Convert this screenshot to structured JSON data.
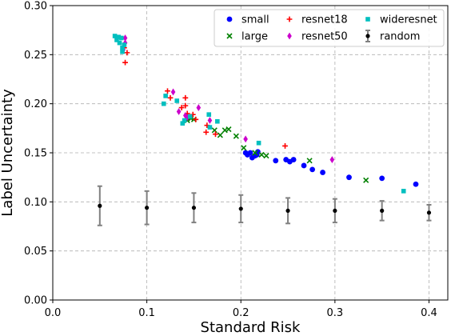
{
  "chart_data": {
    "type": "scatter",
    "title": "",
    "xlabel": "Standard Risk",
    "ylabel": "Label Uncertainty",
    "xlim": [
      0.0,
      0.42
    ],
    "ylim": [
      0.0,
      0.3
    ],
    "xticks": [
      "0.0",
      "0.1",
      "0.2",
      "0.3",
      "0.4"
    ],
    "xtick_values": [
      0.0,
      0.1,
      0.2,
      0.3,
      0.4
    ],
    "yticks": [
      "0.00",
      "0.05",
      "0.10",
      "0.15",
      "0.20",
      "0.25",
      "0.30"
    ],
    "ytick_values": [
      0.0,
      0.05,
      0.1,
      0.15,
      0.2,
      0.25,
      0.3
    ],
    "grid": true,
    "legend_position": "top-right",
    "series": [
      {
        "name": "small",
        "color": "#0000ff",
        "marker": "circle",
        "points": [
          [
            0.205,
            0.15
          ],
          [
            0.207,
            0.148
          ],
          [
            0.21,
            0.15
          ],
          [
            0.212,
            0.145
          ],
          [
            0.215,
            0.147
          ],
          [
            0.217,
            0.148
          ],
          [
            0.218,
            0.151
          ],
          [
            0.237,
            0.142
          ],
          [
            0.248,
            0.143
          ],
          [
            0.252,
            0.141
          ],
          [
            0.256,
            0.143
          ],
          [
            0.267,
            0.137
          ],
          [
            0.276,
            0.133
          ],
          [
            0.287,
            0.13
          ],
          [
            0.315,
            0.125
          ],
          [
            0.35,
            0.124
          ],
          [
            0.386,
            0.118
          ]
        ]
      },
      {
        "name": "large",
        "color": "#008000",
        "marker": "x",
        "points": [
          [
            0.143,
            0.183
          ],
          [
            0.147,
            0.185
          ],
          [
            0.15,
            0.184
          ],
          [
            0.172,
            0.173
          ],
          [
            0.178,
            0.168
          ],
          [
            0.183,
            0.173
          ],
          [
            0.187,
            0.174
          ],
          [
            0.195,
            0.167
          ],
          [
            0.203,
            0.155
          ],
          [
            0.215,
            0.15
          ],
          [
            0.222,
            0.148
          ],
          [
            0.227,
            0.147
          ],
          [
            0.273,
            0.142
          ],
          [
            0.333,
            0.122
          ]
        ]
      },
      {
        "name": "resnet18",
        "color": "#ff0000",
        "marker": "plus",
        "points": [
          [
            0.077,
            0.242
          ],
          [
            0.076,
            0.257
          ],
          [
            0.079,
            0.252
          ],
          [
            0.122,
            0.213
          ],
          [
            0.125,
            0.206
          ],
          [
            0.137,
            0.196
          ],
          [
            0.141,
            0.198
          ],
          [
            0.141,
            0.206
          ],
          [
            0.143,
            0.19
          ],
          [
            0.149,
            0.189
          ],
          [
            0.152,
            0.184
          ],
          [
            0.163,
            0.171
          ],
          [
            0.164,
            0.178
          ],
          [
            0.173,
            0.169
          ],
          [
            0.247,
            0.157
          ]
        ]
      },
      {
        "name": "resnet50",
        "color": "#cc00cc",
        "marker": "diamond",
        "points": [
          [
            0.075,
            0.255
          ],
          [
            0.077,
            0.262
          ],
          [
            0.077,
            0.267
          ],
          [
            0.128,
            0.212
          ],
          [
            0.134,
            0.192
          ],
          [
            0.141,
            0.188
          ],
          [
            0.143,
            0.186
          ],
          [
            0.155,
            0.196
          ],
          [
            0.167,
            0.183
          ],
          [
            0.205,
            0.164
          ],
          [
            0.297,
            0.143
          ]
        ]
      },
      {
        "name": "wideresnet",
        "color": "#00bfbf",
        "marker": "square",
        "points": [
          [
            0.066,
            0.269
          ],
          [
            0.068,
            0.265
          ],
          [
            0.07,
            0.268
          ],
          [
            0.071,
            0.262
          ],
          [
            0.073,
            0.267
          ],
          [
            0.074,
            0.257
          ],
          [
            0.076,
            0.26
          ],
          [
            0.074,
            0.253
          ],
          [
            0.118,
            0.2
          ],
          [
            0.12,
            0.208
          ],
          [
            0.132,
            0.203
          ],
          [
            0.138,
            0.18
          ],
          [
            0.14,
            0.183
          ],
          [
            0.146,
            0.187
          ],
          [
            0.166,
            0.189
          ],
          [
            0.167,
            0.176
          ],
          [
            0.175,
            0.182
          ],
          [
            0.219,
            0.16
          ],
          [
            0.373,
            0.111
          ]
        ]
      },
      {
        "name": "random",
        "color": "#000000",
        "marker": "circle-errorbar",
        "errorbar_color": "#808080",
        "points": [
          [
            0.05,
            0.096,
            0.02
          ],
          [
            0.1,
            0.094,
            0.017
          ],
          [
            0.15,
            0.094,
            0.015
          ],
          [
            0.2,
            0.093,
            0.014
          ],
          [
            0.25,
            0.091,
            0.013
          ],
          [
            0.3,
            0.091,
            0.012
          ],
          [
            0.35,
            0.091,
            0.01
          ],
          [
            0.4,
            0.089,
            0.008
          ]
        ]
      }
    ]
  }
}
